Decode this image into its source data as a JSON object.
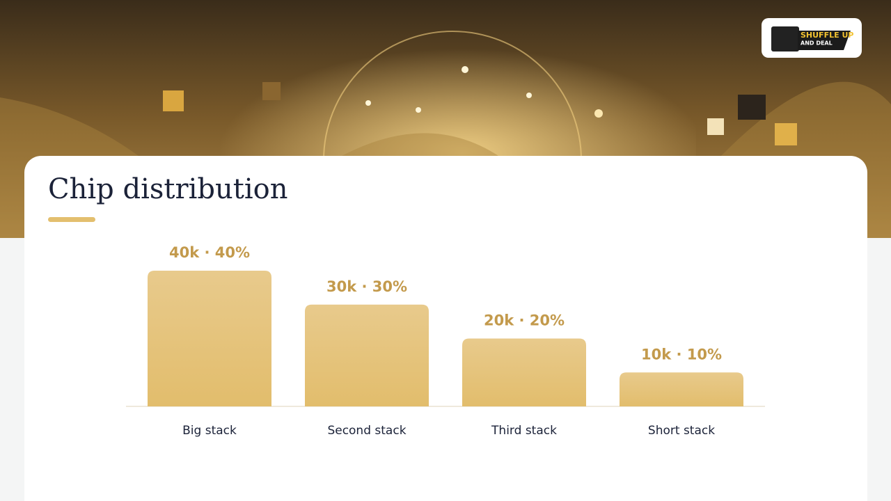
{
  "logo": {
    "line1": "SHUFFLE UP",
    "line2": "AND DEAL"
  },
  "chart_data": {
    "type": "bar",
    "title": "Chip distribution",
    "categories": [
      "Big stack",
      "Second stack",
      "Third stack",
      "Short stack"
    ],
    "values": [
      40000,
      30000,
      20000,
      10000
    ],
    "value_labels": [
      "40k · 40%",
      "30k · 30%",
      "20k · 20%",
      "10k · 10%"
    ],
    "color": "#e6c57e"
  }
}
